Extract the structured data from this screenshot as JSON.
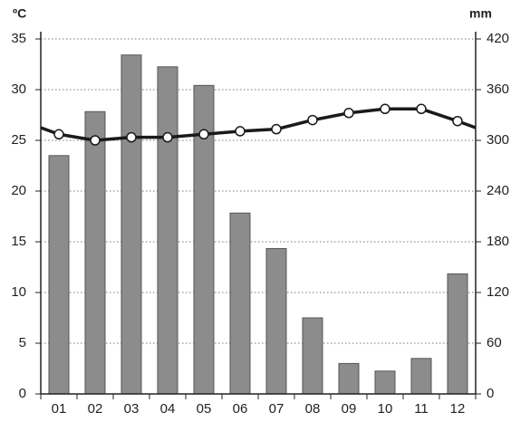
{
  "chart_data": {
    "type": "bar",
    "ylabel": "ºC",
    "y2label": "mm",
    "categories": [
      "01",
      "02",
      "03",
      "04",
      "05",
      "06",
      "07",
      "08",
      "09",
      "10",
      "11",
      "12"
    ],
    "series": [
      {
        "type": "bar",
        "axis": "y2",
        "color": "#8c8c8c",
        "values": [
          282,
          334,
          401,
          387,
          365,
          214,
          172,
          90,
          36,
          27,
          42,
          142
        ]
      },
      {
        "type": "line",
        "axis": "y",
        "color": "#1a1a1a",
        "values": [
          25.6,
          25.0,
          25.3,
          25.3,
          25.6,
          25.9,
          26.1,
          27.0,
          27.7,
          28.1,
          28.1,
          26.9
        ]
      }
    ],
    "ylim": [
      0,
      35
    ],
    "yticks": [
      0,
      5,
      10,
      15,
      20,
      25,
      30,
      35
    ],
    "y2lim": [
      0,
      420
    ],
    "y2ticks": [
      0,
      60,
      120,
      180,
      240,
      300,
      360,
      420
    ],
    "grid": true
  }
}
